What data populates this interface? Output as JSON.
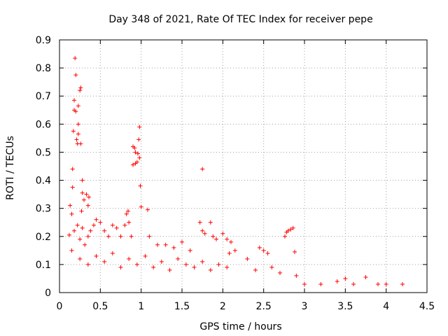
{
  "chart_data": {
    "type": "scatter",
    "title": "Day 348 of 2021, Rate Of TEC Index for receiver pepe",
    "xlabel": "GPS time / hours",
    "ylabel": "ROTI / TECUs",
    "xlim": [
      0,
      4.5
    ],
    "ylim": [
      0,
      0.9
    ],
    "grid": true,
    "marker": "+",
    "series_color": "#ff0000",
    "x_ticks": [
      0,
      0.5,
      1,
      1.5,
      2,
      2.5,
      3,
      3.5,
      4,
      4.5
    ],
    "x_tick_labels": [
      "0",
      "0.5",
      "1",
      "1.5",
      "2",
      "2.5",
      "3",
      "3.5",
      "4",
      "4.5"
    ],
    "y_ticks": [
      0,
      0.1,
      0.2,
      0.3,
      0.4,
      0.5,
      0.6,
      0.7,
      0.8,
      0.9
    ],
    "y_tick_labels": [
      "0",
      "0.1",
      "0.2",
      "0.3",
      "0.4",
      "0.5",
      "0.6",
      "0.7",
      "0.8",
      "0.9"
    ],
    "series": [
      {
        "name": "ROTI",
        "points": [
          [
            0.19,
            0.835
          ],
          [
            0.2,
            0.775
          ],
          [
            0.26,
            0.73
          ],
          [
            0.25,
            0.72
          ],
          [
            0.18,
            0.685
          ],
          [
            0.23,
            0.665
          ],
          [
            0.18,
            0.65
          ],
          [
            0.2,
            0.645
          ],
          [
            0.23,
            0.6
          ],
          [
            0.17,
            0.575
          ],
          [
            0.23,
            0.565
          ],
          [
            0.21,
            0.545
          ],
          [
            0.22,
            0.53
          ],
          [
            0.26,
            0.53
          ],
          [
            0.16,
            0.44
          ],
          [
            0.28,
            0.4
          ],
          [
            0.16,
            0.375
          ],
          [
            0.28,
            0.355
          ],
          [
            0.33,
            0.35
          ],
          [
            0.36,
            0.34
          ],
          [
            0.3,
            0.33
          ],
          [
            0.35,
            0.31
          ],
          [
            0.13,
            0.31
          ],
          [
            0.27,
            0.29
          ],
          [
            0.15,
            0.28
          ],
          [
            0.98,
            0.59
          ],
          [
            0.97,
            0.545
          ],
          [
            0.9,
            0.52
          ],
          [
            0.92,
            0.515
          ],
          [
            0.93,
            0.5
          ],
          [
            0.96,
            0.495
          ],
          [
            0.98,
            0.48
          ],
          [
            0.95,
            0.465
          ],
          [
            0.93,
            0.46
          ],
          [
            0.9,
            0.455
          ],
          [
            0.99,
            0.38
          ],
          [
            1.0,
            0.305
          ],
          [
            1.08,
            0.295
          ],
          [
            0.84,
            0.29
          ],
          [
            0.82,
            0.28
          ],
          [
            1.75,
            0.44
          ],
          [
            0.12,
            0.205
          ],
          [
            0.18,
            0.22
          ],
          [
            0.22,
            0.24
          ],
          [
            0.25,
            0.19
          ],
          [
            0.28,
            0.23
          ],
          [
            0.31,
            0.17
          ],
          [
            0.35,
            0.2
          ],
          [
            0.38,
            0.22
          ],
          [
            0.42,
            0.24
          ],
          [
            0.45,
            0.26
          ],
          [
            0.5,
            0.25
          ],
          [
            0.55,
            0.22
          ],
          [
            0.6,
            0.2
          ],
          [
            0.65,
            0.24
          ],
          [
            0.7,
            0.23
          ],
          [
            0.75,
            0.2
          ],
          [
            0.8,
            0.24
          ],
          [
            0.85,
            0.25
          ],
          [
            0.88,
            0.2
          ],
          [
            1.1,
            0.2
          ],
          [
            1.2,
            0.17
          ],
          [
            1.3,
            0.17
          ],
          [
            1.4,
            0.16
          ],
          [
            1.5,
            0.18
          ],
          [
            1.6,
            0.15
          ],
          [
            1.72,
            0.25
          ],
          [
            1.75,
            0.22
          ],
          [
            1.78,
            0.21
          ],
          [
            1.85,
            0.25
          ],
          [
            1.88,
            0.2
          ],
          [
            1.92,
            0.19
          ],
          [
            2.0,
            0.21
          ],
          [
            2.05,
            0.19
          ],
          [
            2.08,
            0.14
          ],
          [
            2.1,
            0.18
          ],
          [
            2.15,
            0.15
          ],
          [
            2.45,
            0.16
          ],
          [
            2.5,
            0.15
          ],
          [
            2.55,
            0.14
          ],
          [
            2.76,
            0.2
          ],
          [
            2.78,
            0.215
          ],
          [
            2.8,
            0.22
          ],
          [
            2.83,
            0.225
          ],
          [
            2.86,
            0.23
          ],
          [
            2.88,
            0.145
          ],
          [
            0.15,
            0.15
          ],
          [
            0.25,
            0.12
          ],
          [
            0.35,
            0.1
          ],
          [
            0.45,
            0.13
          ],
          [
            0.55,
            0.11
          ],
          [
            0.65,
            0.14
          ],
          [
            0.75,
            0.09
          ],
          [
            0.85,
            0.12
          ],
          [
            0.95,
            0.1
          ],
          [
            1.05,
            0.13
          ],
          [
            1.15,
            0.09
          ],
          [
            1.25,
            0.11
          ],
          [
            1.35,
            0.08
          ],
          [
            1.45,
            0.12
          ],
          [
            1.55,
            0.1
          ],
          [
            1.65,
            0.09
          ],
          [
            1.75,
            0.11
          ],
          [
            1.85,
            0.08
          ],
          [
            1.95,
            0.1
          ],
          [
            2.05,
            0.09
          ],
          [
            2.3,
            0.12
          ],
          [
            2.4,
            0.08
          ],
          [
            2.6,
            0.09
          ],
          [
            2.7,
            0.07
          ],
          [
            2.9,
            0.06
          ],
          [
            3.0,
            0.03
          ],
          [
            3.2,
            0.03
          ],
          [
            3.4,
            0.04
          ],
          [
            3.5,
            0.05
          ],
          [
            3.6,
            0.03
          ],
          [
            3.75,
            0.055
          ],
          [
            3.9,
            0.03
          ],
          [
            4.0,
            0.03
          ],
          [
            4.2,
            0.03
          ]
        ]
      }
    ]
  }
}
